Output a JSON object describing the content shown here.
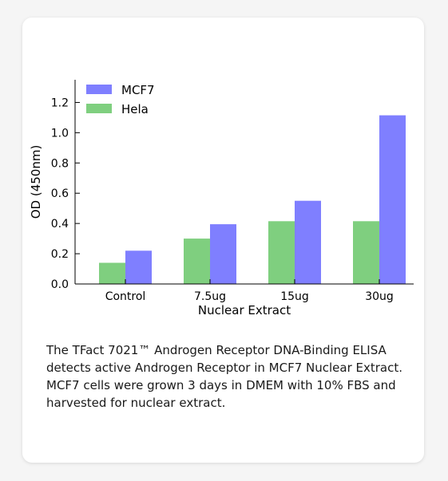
{
  "chart_data": {
    "type": "bar",
    "categories": [
      "Control",
      "7.5ug",
      "15ug",
      "30ug"
    ],
    "series": [
      {
        "name": "Hela",
        "values": [
          0.14,
          0.3,
          0.415,
          0.415
        ],
        "color": "#7fcf7f"
      },
      {
        "name": "MCF7",
        "values": [
          0.22,
          0.395,
          0.55,
          1.115
        ],
        "color": "#7f7fff"
      }
    ],
    "title": "",
    "xlabel": "Nuclear Extract",
    "ylabel": "OD (450nm)",
    "ylim": [
      0,
      1.35
    ],
    "yticks": [
      "0.0",
      "0.2",
      "0.4",
      "0.6",
      "0.8",
      "1.0",
      "1.2"
    ],
    "ytick_values": [
      0,
      0.2,
      0.4,
      0.6,
      0.8,
      1.0,
      1.2
    ],
    "legend": {
      "placement": "top-left",
      "order": [
        "MCF7",
        "Hela"
      ]
    },
    "grid": false
  },
  "caption": "The TFact 7021™ Androgen Receptor DNA-Binding ELISA detects active Androgen Receptor in MCF7 Nuclear Extract. MCF7 cells were grown 3 days in DMEM with 10% FBS and harvested for nuclear extract."
}
